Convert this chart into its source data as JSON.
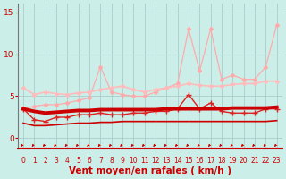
{
  "x": [
    0,
    1,
    2,
    3,
    4,
    5,
    6,
    7,
    8,
    9,
    10,
    11,
    12,
    13,
    14,
    15,
    16,
    17,
    18,
    19,
    20,
    21,
    22,
    23
  ],
  "background_color": "#cceee8",
  "grid_color": "#aacccc",
  "xlabel": "Vent moyen/en rafales ( km/h )",
  "xlabel_color": "#cc0000",
  "tick_color": "#cc0000",
  "ylim": [
    -1.2,
    16
  ],
  "yticks": [
    0,
    5,
    10,
    15
  ],
  "series": [
    {
      "values": [
        3.5,
        3.8,
        4.0,
        4.0,
        4.2,
        4.5,
        4.8,
        8.5,
        5.5,
        5.2,
        5.0,
        5.0,
        5.5,
        6.0,
        6.5,
        13.0,
        8.0,
        13.0,
        7.0,
        7.5,
        7.0,
        7.0,
        8.5,
        13.5
      ],
      "color": "#ffaaaa",
      "lw": 0.9,
      "marker": "D",
      "ms": 2.0
    },
    {
      "values": [
        6.0,
        5.2,
        5.5,
        5.3,
        5.2,
        5.4,
        5.5,
        5.8,
        6.0,
        6.2,
        5.8,
        5.5,
        5.8,
        6.0,
        6.2,
        6.5,
        6.3,
        6.2,
        6.2,
        6.4,
        6.5,
        6.5,
        6.8,
        6.8
      ],
      "color": "#ffbbbb",
      "lw": 1.2,
      "marker": "D",
      "ms": 2.0
    },
    {
      "values": [
        3.5,
        2.2,
        2.0,
        2.5,
        2.5,
        2.8,
        2.8,
        3.0,
        2.8,
        2.8,
        3.0,
        3.0,
        3.2,
        3.2,
        3.5,
        5.2,
        3.5,
        4.2,
        3.2,
        3.0,
        3.0,
        3.0,
        3.5,
        3.5
      ],
      "color": "#dd2222",
      "lw": 1.0,
      "marker": "+",
      "ms": 4
    },
    {
      "values": [
        3.5,
        3.2,
        3.0,
        3.1,
        3.2,
        3.3,
        3.3,
        3.4,
        3.4,
        3.4,
        3.4,
        3.4,
        3.4,
        3.5,
        3.5,
        3.5,
        3.5,
        3.5,
        3.5,
        3.6,
        3.6,
        3.6,
        3.6,
        3.7
      ],
      "color": "#cc0000",
      "lw": 2.8,
      "marker": null,
      "ms": 0
    },
    {
      "values": [
        1.8,
        1.5,
        1.5,
        1.6,
        1.7,
        1.8,
        1.8,
        1.9,
        1.9,
        2.0,
        2.0,
        2.0,
        2.0,
        2.0,
        2.0,
        2.0,
        2.0,
        2.0,
        2.0,
        2.0,
        2.0,
        2.0,
        2.0,
        2.1
      ],
      "color": "#cc0000",
      "lw": 1.2,
      "marker": null,
      "ms": 0
    }
  ],
  "arrow_color": "#cc0000",
  "axis_fontsize": 5.5,
  "xlabel_fontsize": 7.5
}
